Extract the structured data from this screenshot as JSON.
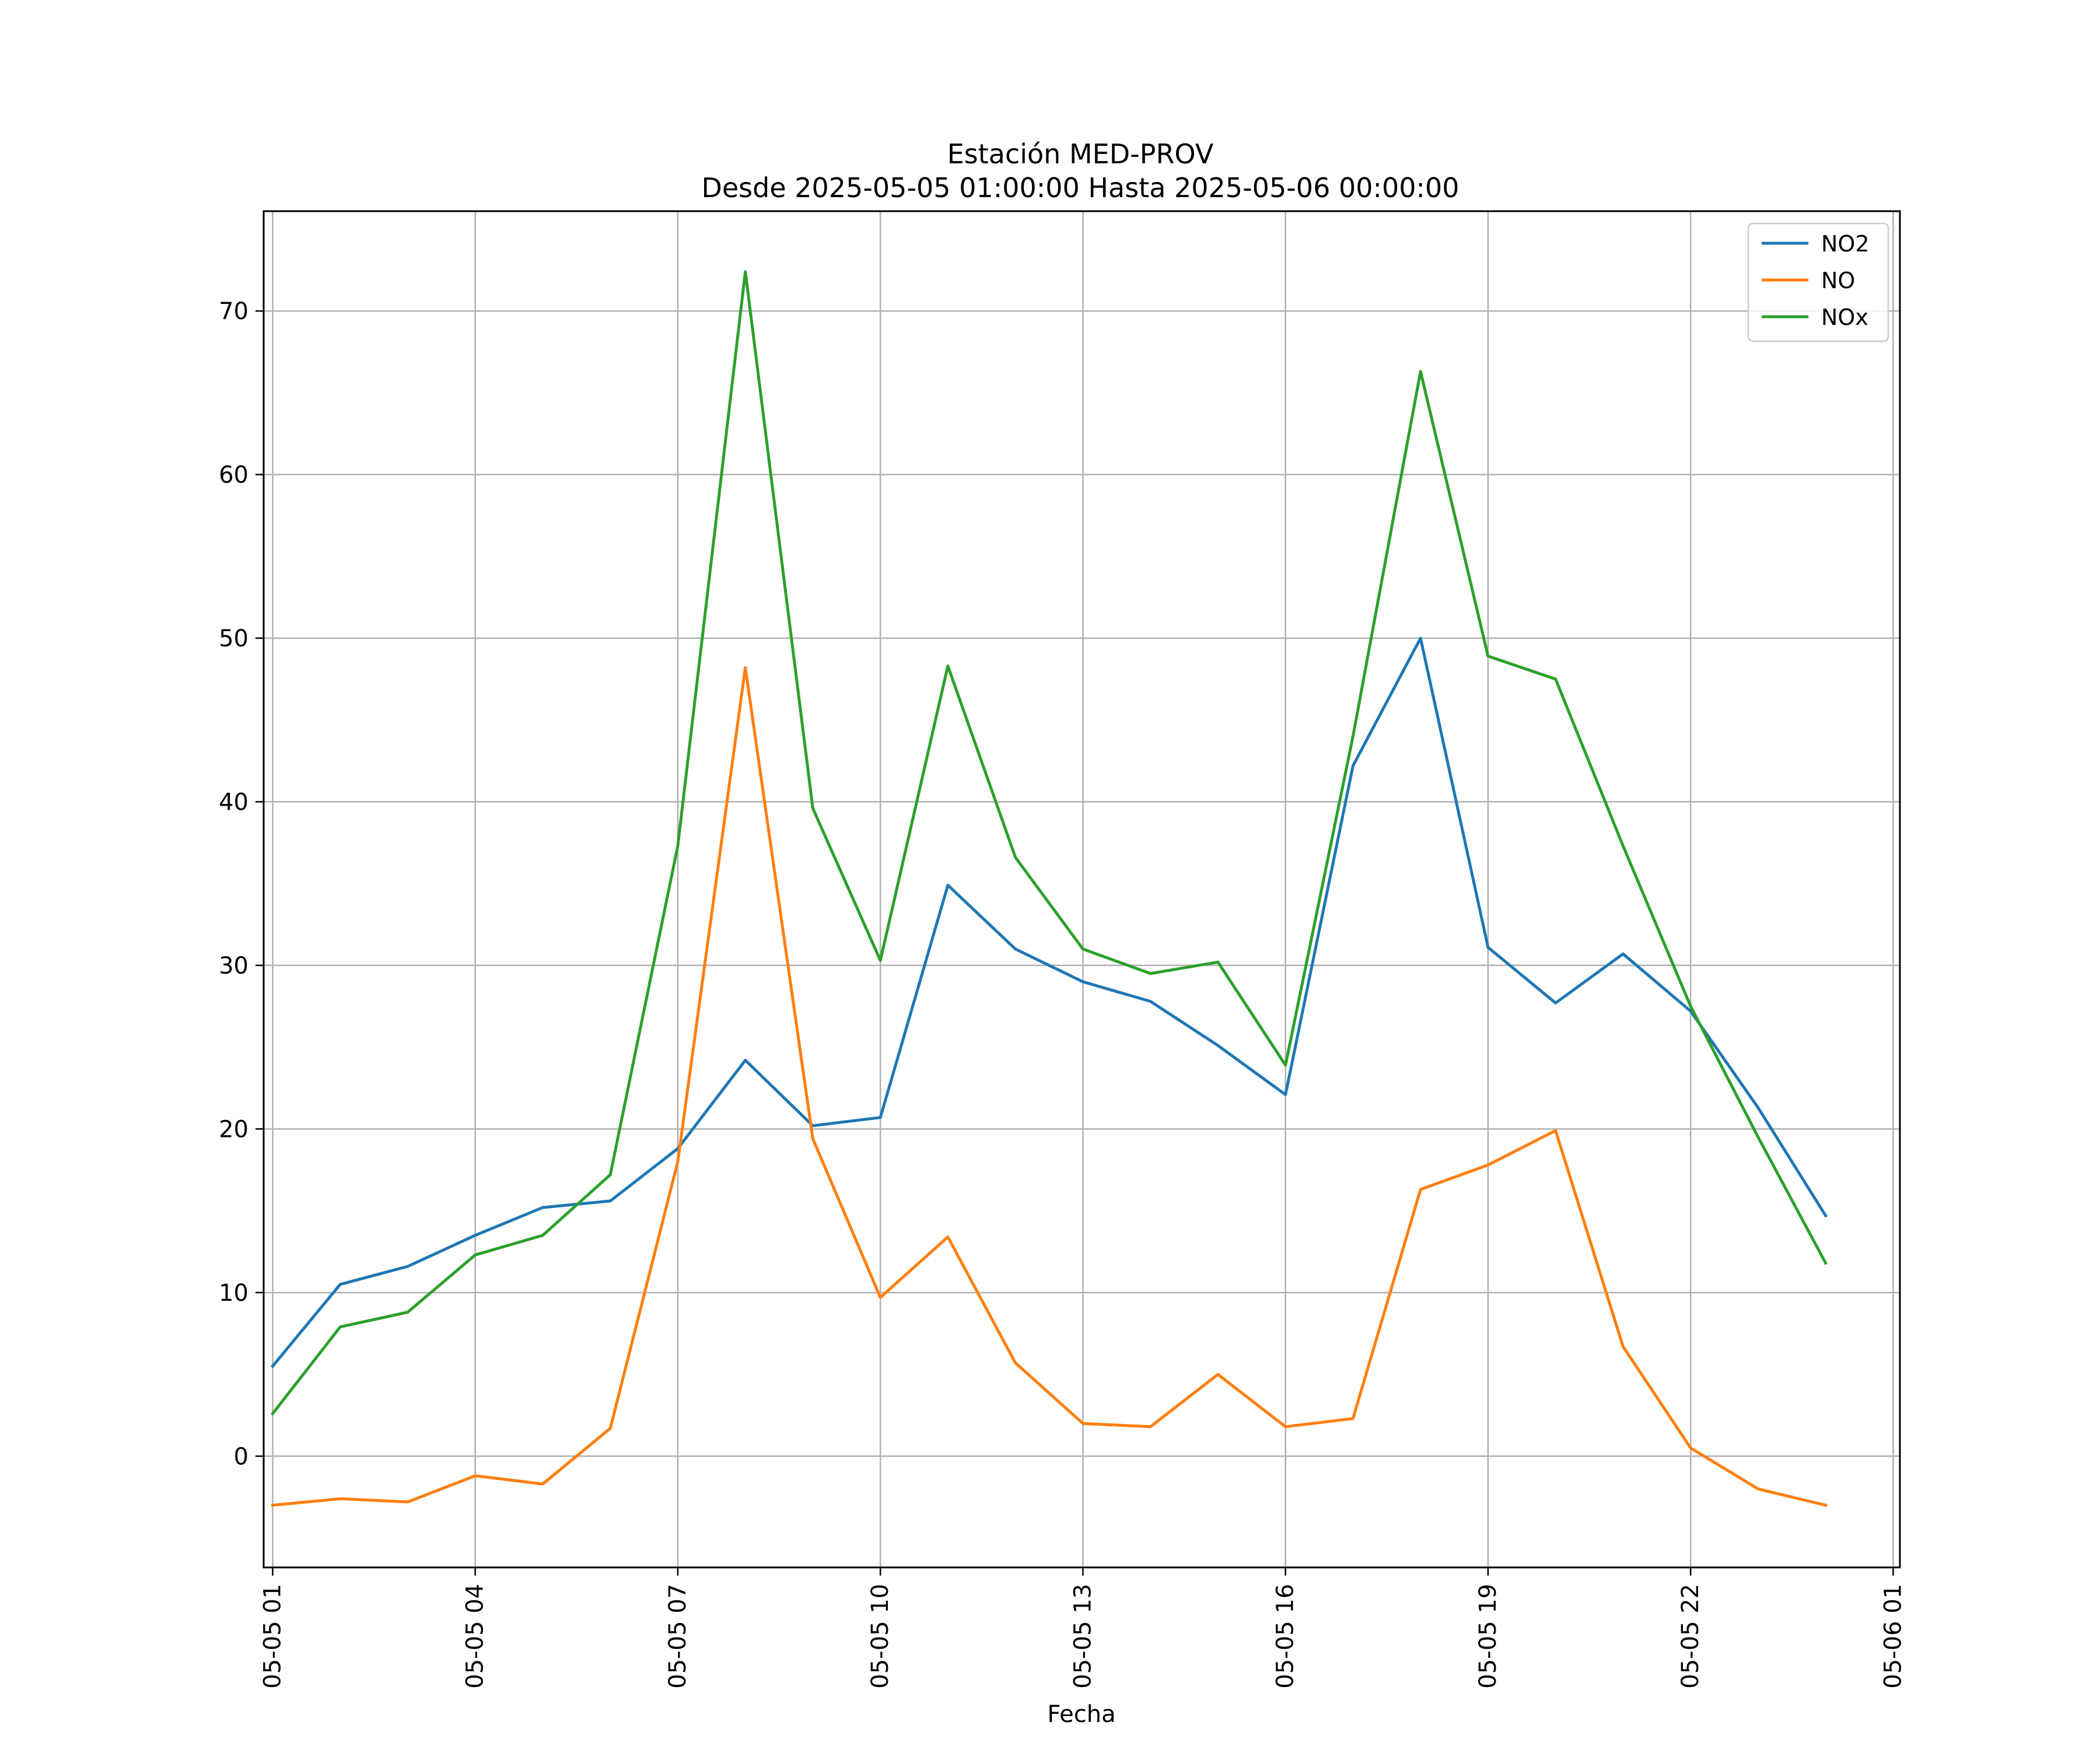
{
  "chart_data": {
    "type": "line",
    "title": "Estación MED-PROV",
    "subtitle": "Desde 2025-05-05 01:00:00 Hasta 2025-05-06 00:00:00",
    "xlabel": "Fecha",
    "ylabel": "",
    "x": [
      "2025-05-05 01:00",
      "2025-05-05 02:00",
      "2025-05-05 03:00",
      "2025-05-05 04:00",
      "2025-05-05 05:00",
      "2025-05-05 06:00",
      "2025-05-05 07:00",
      "2025-05-05 08:00",
      "2025-05-05 09:00",
      "2025-05-05 10:00",
      "2025-05-05 11:00",
      "2025-05-05 12:00",
      "2025-05-05 13:00",
      "2025-05-05 14:00",
      "2025-05-05 15:00",
      "2025-05-05 16:00",
      "2025-05-05 17:00",
      "2025-05-05 18:00",
      "2025-05-05 19:00",
      "2025-05-05 20:00",
      "2025-05-05 21:00",
      "2025-05-05 22:00",
      "2025-05-05 23:00",
      "2025-05-06 00:00"
    ],
    "xlim": [
      "2025-05-05 00:52",
      "2025-05-06 01:06"
    ],
    "ylim": [
      -6.8,
      76.1
    ],
    "xticks": [
      "05-05 01",
      "05-05 04",
      "05-05 07",
      "05-05 10",
      "05-05 13",
      "05-05 16",
      "05-05 19",
      "05-05 22",
      "05-06 01"
    ],
    "yticks": [
      "0",
      "10",
      "20",
      "30",
      "40",
      "50",
      "60",
      "70"
    ],
    "grid": true,
    "legend_position": "top-right",
    "series": [
      {
        "name": "NO2",
        "color": "#1f77b4",
        "values": [
          5.5,
          10.5,
          11.6,
          13.5,
          15.2,
          15.6,
          18.8,
          24.2,
          20.2,
          20.7,
          34.9,
          31.0,
          29.0,
          27.8,
          25.1,
          22.1,
          42.2,
          50.0,
          31.1,
          27.7,
          30.7,
          27.2,
          21.3,
          14.7
        ]
      },
      {
        "name": "NO",
        "color": "#ff7f0e",
        "values": [
          -3.0,
          -2.6,
          -2.8,
          -1.2,
          -1.7,
          1.7,
          18.0,
          48.2,
          19.4,
          9.7,
          13.4,
          5.7,
          2.0,
          1.8,
          5.0,
          1.8,
          2.3,
          16.3,
          17.8,
          19.9,
          6.7,
          0.5,
          -2.0,
          -3.0
        ]
      },
      {
        "name": "NOx",
        "color": "#2ca02c",
        "values": [
          2.6,
          7.9,
          8.8,
          12.3,
          13.5,
          17.2,
          37.3,
          72.4,
          39.6,
          30.3,
          48.3,
          36.6,
          31.0,
          29.5,
          30.2,
          23.9,
          44.0,
          66.3,
          48.9,
          47.5,
          37.3,
          27.5,
          19.5,
          11.8
        ]
      }
    ]
  }
}
